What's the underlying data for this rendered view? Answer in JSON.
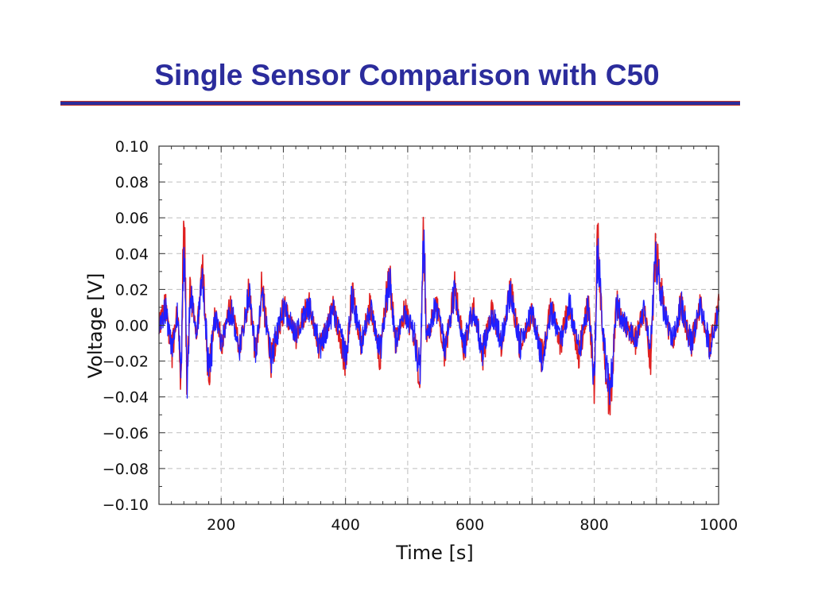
{
  "slide": {
    "title": "Single Sensor Comparison with C50"
  },
  "colors": {
    "title": "#2b2c9c",
    "series_1": "#e02020",
    "series_2": "#1f1fff",
    "grid": "#bdbdbd"
  },
  "chart_data": {
    "type": "line",
    "title": "",
    "xlabel": "Time [s]",
    "ylabel": "Voltage [V]",
    "xlim": [
      100,
      1000
    ],
    "ylim": [
      -0.1,
      0.1
    ],
    "xticks": [
      200,
      400,
      600,
      800,
      1000
    ],
    "yticks": [
      -0.1,
      -0.08,
      -0.06,
      -0.04,
      -0.02,
      0.0,
      0.02,
      0.04,
      0.06,
      0.08,
      0.1
    ],
    "xtick_labels": [
      "200",
      "400",
      "600",
      "800",
      "1000"
    ],
    "ytick_labels": [
      "−0.10",
      "−0.08",
      "−0.06",
      "−0.04",
      "−0.02",
      "0.00",
      "0.02",
      "0.04",
      "0.06",
      "0.08",
      "0.10"
    ],
    "grid": true,
    "legend": "none",
    "series": [
      {
        "color": "#e02020",
        "envelope_points": [
          [
            100,
            0.0
          ],
          [
            110,
            0.01
          ],
          [
            120,
            -0.016
          ],
          [
            130,
            0.008
          ],
          [
            135,
            -0.03
          ],
          [
            140,
            0.06
          ],
          [
            145,
            -0.036
          ],
          [
            150,
            0.02
          ],
          [
            160,
            -0.005
          ],
          [
            170,
            0.03
          ],
          [
            180,
            -0.03
          ],
          [
            190,
            0.006
          ],
          [
            200,
            -0.01
          ],
          [
            215,
            0.01
          ],
          [
            230,
            -0.014
          ],
          [
            245,
            0.02
          ],
          [
            255,
            -0.018
          ],
          [
            265,
            0.02
          ],
          [
            280,
            -0.02
          ],
          [
            300,
            0.01
          ],
          [
            320,
            -0.006
          ],
          [
            340,
            0.012
          ],
          [
            360,
            -0.014
          ],
          [
            380,
            0.01
          ],
          [
            400,
            -0.02
          ],
          [
            410,
            0.018
          ],
          [
            425,
            -0.01
          ],
          [
            440,
            0.012
          ],
          [
            455,
            -0.018
          ],
          [
            470,
            0.03
          ],
          [
            480,
            -0.01
          ],
          [
            495,
            0.008
          ],
          [
            510,
            -0.006
          ],
          [
            520,
            -0.03
          ],
          [
            525,
            0.054
          ],
          [
            530,
            -0.01
          ],
          [
            545,
            0.012
          ],
          [
            560,
            -0.016
          ],
          [
            575,
            0.022
          ],
          [
            590,
            -0.014
          ],
          [
            605,
            0.01
          ],
          [
            620,
            -0.016
          ],
          [
            635,
            0.008
          ],
          [
            650,
            -0.01
          ],
          [
            665,
            0.02
          ],
          [
            680,
            -0.012
          ],
          [
            700,
            0.008
          ],
          [
            715,
            -0.02
          ],
          [
            730,
            0.01
          ],
          [
            745,
            -0.01
          ],
          [
            760,
            0.012
          ],
          [
            775,
            -0.016
          ],
          [
            790,
            0.012
          ],
          [
            800,
            -0.034
          ],
          [
            805,
            0.05
          ],
          [
            812,
            0.002
          ],
          [
            825,
            -0.046
          ],
          [
            835,
            0.012
          ],
          [
            850,
            0.0
          ],
          [
            865,
            -0.01
          ],
          [
            880,
            0.01
          ],
          [
            890,
            -0.018
          ],
          [
            898,
            0.04
          ],
          [
            910,
            0.012
          ],
          [
            925,
            -0.01
          ],
          [
            940,
            0.012
          ],
          [
            955,
            -0.012
          ],
          [
            970,
            0.012
          ],
          [
            985,
            -0.012
          ],
          [
            1000,
            0.01
          ]
        ]
      },
      {
        "color": "#1f1fff",
        "envelope_points": [
          [
            100,
            0.0
          ],
          [
            110,
            0.009
          ],
          [
            120,
            -0.014
          ],
          [
            130,
            0.007
          ],
          [
            135,
            -0.028
          ],
          [
            140,
            0.057
          ],
          [
            145,
            -0.034
          ],
          [
            150,
            0.018
          ],
          [
            160,
            -0.004
          ],
          [
            170,
            0.028
          ],
          [
            180,
            -0.028
          ],
          [
            190,
            0.005
          ],
          [
            200,
            -0.009
          ],
          [
            215,
            0.009
          ],
          [
            230,
            -0.013
          ],
          [
            245,
            0.018
          ],
          [
            255,
            -0.017
          ],
          [
            265,
            0.018
          ],
          [
            280,
            -0.018
          ],
          [
            300,
            0.009
          ],
          [
            320,
            -0.005
          ],
          [
            340,
            0.011
          ],
          [
            360,
            -0.013
          ],
          [
            380,
            0.009
          ],
          [
            400,
            -0.018
          ],
          [
            410,
            0.016
          ],
          [
            425,
            -0.009
          ],
          [
            440,
            0.011
          ],
          [
            455,
            -0.016
          ],
          [
            470,
            0.028
          ],
          [
            480,
            -0.009
          ],
          [
            495,
            0.007
          ],
          [
            510,
            -0.005
          ],
          [
            520,
            -0.028
          ],
          [
            525,
            0.052
          ],
          [
            530,
            -0.009
          ],
          [
            545,
            0.011
          ],
          [
            560,
            -0.014
          ],
          [
            575,
            0.02
          ],
          [
            590,
            -0.013
          ],
          [
            605,
            0.009
          ],
          [
            620,
            -0.014
          ],
          [
            635,
            0.007
          ],
          [
            650,
            -0.009
          ],
          [
            665,
            0.018
          ],
          [
            680,
            -0.011
          ],
          [
            700,
            0.007
          ],
          [
            715,
            -0.018
          ],
          [
            730,
            0.009
          ],
          [
            745,
            -0.009
          ],
          [
            760,
            0.011
          ],
          [
            775,
            -0.014
          ],
          [
            790,
            0.011
          ],
          [
            800,
            -0.032
          ],
          [
            805,
            0.048
          ],
          [
            812,
            0.002
          ],
          [
            825,
            -0.043
          ],
          [
            835,
            0.011
          ],
          [
            850,
            0.0
          ],
          [
            865,
            -0.009
          ],
          [
            880,
            0.009
          ],
          [
            890,
            -0.016
          ],
          [
            898,
            0.038
          ],
          [
            910,
            0.011
          ],
          [
            925,
            -0.009
          ],
          [
            940,
            0.011
          ],
          [
            955,
            -0.011
          ],
          [
            970,
            0.011
          ],
          [
            985,
            -0.011
          ],
          [
            1000,
            0.009
          ]
        ]
      }
    ]
  }
}
